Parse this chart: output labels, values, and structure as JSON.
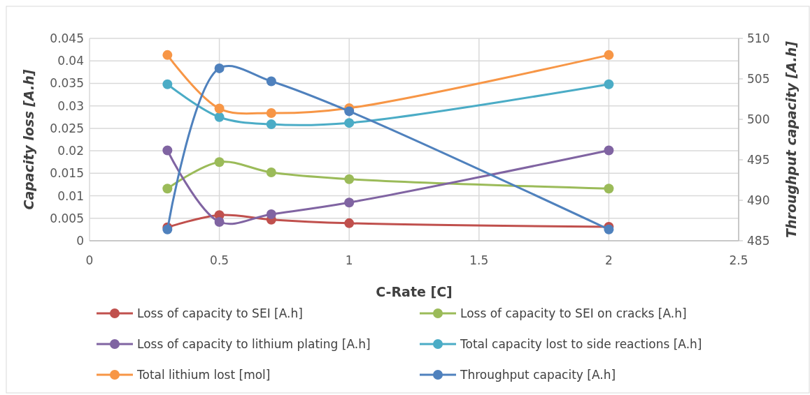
{
  "chart_data": {
    "type": "line",
    "xlabel": "C-Rate [C]",
    "ylabel": "Capacity loss [A.h]",
    "y2label": "Throughput capacity [A.h]",
    "x": [
      0.3,
      0.5,
      0.7,
      1,
      2
    ],
    "xlim": [
      0,
      2.5
    ],
    "xticks": [
      0,
      0.5,
      1,
      1.5,
      2,
      2.5
    ],
    "ylim": [
      0,
      0.045
    ],
    "yticks": [
      0,
      0.005,
      0.01,
      0.015,
      0.02,
      0.025,
      0.03,
      0.035,
      0.04,
      0.045
    ],
    "y2lim": [
      485,
      510
    ],
    "y2ticks": [
      485,
      490,
      495,
      500,
      505,
      510
    ],
    "grid": true,
    "legend": "bottom",
    "marker": "circle",
    "line_style": "solid",
    "series": [
      {
        "name": "Loss of capacity to SEI [A.h]",
        "color": "#c0504d",
        "values": [
          0.003,
          0.0057,
          0.0047,
          0.0039,
          0.0031
        ]
      },
      {
        "name": "Loss of capacity to SEI on cracks [A.h]",
        "color": "#9bbb59",
        "values": [
          0.0116,
          0.0175,
          0.0152,
          0.0137,
          0.0116
        ]
      },
      {
        "name": "Loss of capacity to lithium plating [A.h]",
        "color": "#8064a2",
        "values": [
          0.0201,
          0.0042,
          0.0059,
          0.0085,
          0.0201
        ]
      },
      {
        "name": "Total capacity lost to side reactions [A.h]",
        "color": "#4bacc6",
        "values": [
          0.0348,
          0.0275,
          0.0259,
          0.0262,
          0.0348
        ]
      },
      {
        "name": "Total lithium lost [mol]",
        "color": "#f79646",
        "values": [
          0.0413,
          0.0294,
          0.0284,
          0.0295,
          0.0413
        ]
      },
      {
        "name": "Throughput capacity [A.h]",
        "color": "#4f81bd",
        "axis": "y2",
        "values": [
          486.4,
          506.3,
          504.7,
          501.0,
          486.4
        ]
      }
    ]
  }
}
